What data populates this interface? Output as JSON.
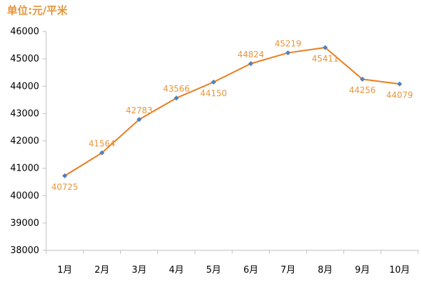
{
  "colors": {
    "line": "#E87C1E",
    "marker": "#4F81BD",
    "data_label": "#E6953A",
    "title": "#E6953A",
    "axis": "#BFBFBF",
    "tick_label": "#000000"
  },
  "chart_data": {
    "type": "line",
    "title": "单位:元/平米",
    "xlabel": "",
    "ylabel": "",
    "categories": [
      "1月",
      "2月",
      "3月",
      "4月",
      "5月",
      "6月",
      "7月",
      "8月",
      "9月",
      "10月"
    ],
    "series": [
      {
        "values": [
          40725,
          41564,
          42783,
          43566,
          44150,
          44824,
          45219,
          45411,
          44256,
          44079
        ],
        "data_label_positions": [
          "below",
          "above",
          "above",
          "above",
          "below",
          "above",
          "above",
          "below",
          "below",
          "below"
        ]
      }
    ],
    "ylim": [
      38000,
      46000
    ],
    "yticks": [
      38000,
      39000,
      40000,
      41000,
      42000,
      43000,
      44000,
      45000,
      46000
    ],
    "grid": false,
    "legend": "none",
    "marker": "diamond"
  }
}
